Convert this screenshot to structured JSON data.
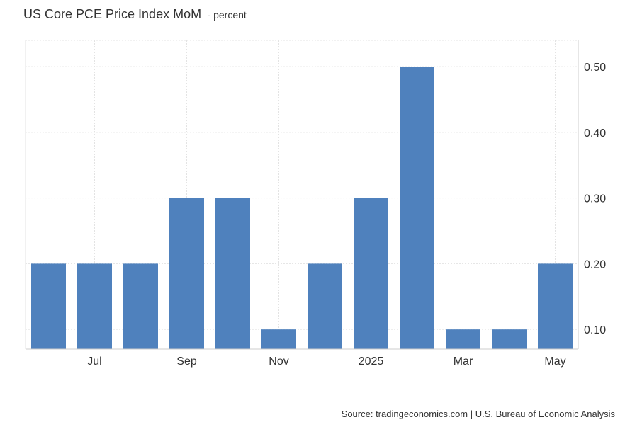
{
  "header": {
    "title": "US Core PCE Price Index MoM",
    "subtitle": "- percent"
  },
  "footer": {
    "source": "Source: tradingeconomics.com | U.S. Bureau of Economic Analysis"
  },
  "colors": {
    "bar": "#4f81bd",
    "grid": "#e3e3e3",
    "axis": "#cccccc",
    "text": "#333333"
  },
  "chart_data": {
    "type": "bar",
    "title": "US Core PCE Price Index MoM",
    "subtitle": "- percent",
    "xlabel": "",
    "ylabel": "",
    "periods": [
      "2024-06",
      "2024-07",
      "2024-08",
      "2024-09",
      "2024-10",
      "2024-11",
      "2024-12",
      "2025-01",
      "2025-02",
      "2025-03",
      "2025-04",
      "2025-05"
    ],
    "values": [
      0.2,
      0.2,
      0.2,
      0.3,
      0.3,
      0.1,
      0.2,
      0.3,
      0.5,
      0.1,
      0.1,
      0.2
    ],
    "x_ticks": [
      {
        "label": "Jul",
        "index": 1.5
      },
      {
        "label": "Sep",
        "index": 3.5
      },
      {
        "label": "Nov",
        "index": 5.5
      },
      {
        "label": "2025",
        "index": 7.5
      },
      {
        "label": "Mar",
        "index": 9.5
      },
      {
        "label": "May",
        "index": 11.5
      }
    ],
    "y_ticks": [
      "0.10",
      "0.20",
      "0.30",
      "0.40",
      "0.50"
    ],
    "y_tick_values": [
      0.1,
      0.2,
      0.3,
      0.4,
      0.5
    ],
    "ylim": [
      0.07,
      0.54
    ],
    "y_axis_position": "right",
    "grid": true,
    "legend": "none"
  }
}
